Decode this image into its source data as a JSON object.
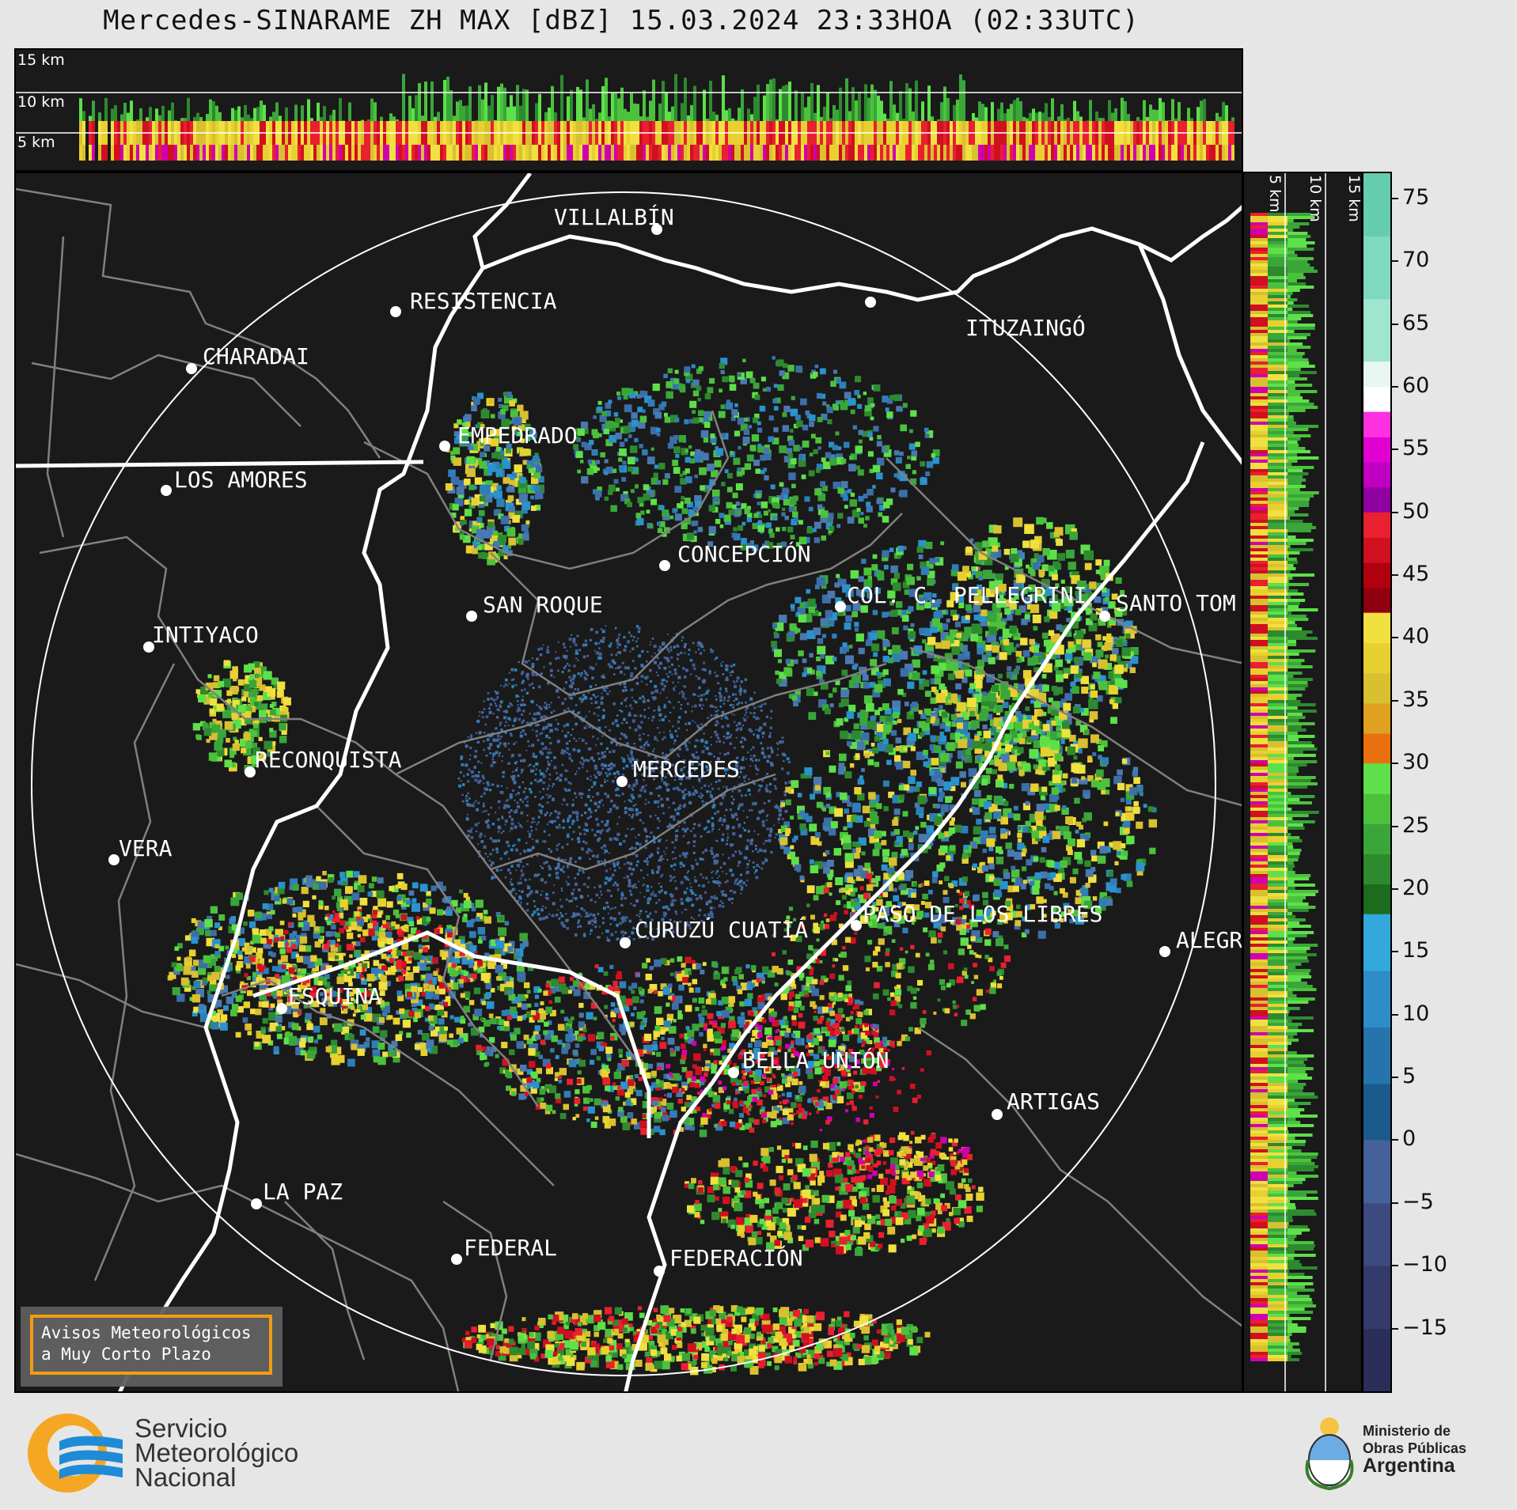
{
  "title": "Mercedes-SINARAME ZH MAX [dBZ] 15.03.2024 23:33HOA (02:33UTC)",
  "cross_section_top": {
    "height_labels": [
      "15 km",
      "10 km",
      "5 km"
    ]
  },
  "cross_section_side": {
    "height_labels": [
      "5 km",
      "10 km",
      "15 km"
    ]
  },
  "colorbar": {
    "ticks": [
      "75",
      "70",
      "65",
      "60",
      "55",
      "50",
      "45",
      "40",
      "35",
      "30",
      "25",
      "20",
      "15",
      "10",
      "5",
      "0",
      "−5",
      "−10",
      "−15"
    ],
    "range": [
      -20,
      77
    ],
    "colors": {
      "lt0": "#3b3f6e",
      "0_18": "#2e7fb8",
      "18_30": "#3aa63a",
      "30_42": "#e8d030",
      "42_50": "#d01020",
      "50_58": "#d000b0",
      "58_62": "#ffffff",
      "62_77": "#7fd8c0"
    }
  },
  "map": {
    "cities": [
      {
        "name": "VILLALBÍN"
      },
      {
        "name": "RESISTENCIA"
      },
      {
        "name": "CHARADAI"
      },
      {
        "name": "ITUZAINGÓ"
      },
      {
        "name": "EMPEDRADO"
      },
      {
        "name": "LOS AMORES"
      },
      {
        "name": "CONCEPCIÓN"
      },
      {
        "name": "SAN ROQUE"
      },
      {
        "name": "COL. C. PELLEGRINI"
      },
      {
        "name": "SANTO TOM"
      },
      {
        "name": "INTIYACO"
      },
      {
        "name": "MERCEDES"
      },
      {
        "name": "RECONQUISTA"
      },
      {
        "name": "VERA"
      },
      {
        "name": "CURUZÚ CUATIÁ"
      },
      {
        "name": "PASO DE LOS LIBRES"
      },
      {
        "name": "ALEGR"
      },
      {
        "name": "ESQUINA"
      },
      {
        "name": "BELLA UNIÓN"
      },
      {
        "name": "ARTIGAS"
      },
      {
        "name": "LA PAZ"
      },
      {
        "name": "FEDERAL"
      },
      {
        "name": "FEDERACIÓN"
      }
    ]
  },
  "warning_box": {
    "line1": "Avisos Meteorológicos",
    "line2": "a Muy Corto Plazo"
  },
  "footer": {
    "smn_line1": "Servicio",
    "smn_line2": "Meteorológico",
    "smn_line3": "Nacional",
    "ministry_line1": "Ministerio de",
    "ministry_line2": "Obras Públicas",
    "ministry_line3": "Argentina"
  }
}
